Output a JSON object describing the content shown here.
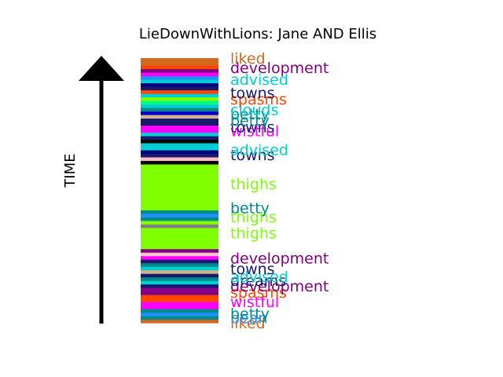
{
  "chart_data": {
    "type": "bar",
    "title": "LieDownWithLions: Jane AND Ellis",
    "ylabel": "TIME",
    "orientation": "vertical-stack",
    "time_axis_direction": "up",
    "stripes_bottom_to_top": [
      "#d2691e",
      "#008b8b",
      "#1e90ff",
      "#008b8b",
      "#ff00ff",
      "#ff00ff",
      "#ff4500",
      "#ff4500",
      "#800080",
      "#8b008b",
      "#191970",
      "#00ced1",
      "#008b8b",
      "#191970",
      "#d2b48c",
      "#00ced1",
      "#008b8b",
      "#191970",
      "#ff00ff",
      "#ffc0cb",
      "#800080",
      "#7fff00",
      "#7fff00",
      "#7fff00",
      "#7fff00",
      "#7fff00",
      "#7fff00",
      "#808080",
      "#7fff00",
      "#008b8b",
      "#1e90ff",
      "#008b8b",
      "#7fff00",
      "#7fff00",
      "#7fff00",
      "#7fff00",
      "#7fff00",
      "#7fff00",
      "#7fff00",
      "#7fff00",
      "#7fff00",
      "#7fff00",
      "#7fff00",
      "#7fff00",
      "#7fff00",
      "#000000",
      "#ffc0cb",
      "#191970",
      "#000080",
      "#00ced1",
      "#00ced1",
      "#000000",
      "#191970",
      "#00ced1",
      "#ff00ff",
      "#ff00ff",
      "#191970",
      "#191970",
      "#d2b48c",
      "#0000cd",
      "#008b8b",
      "#00ced1",
      "#00ff7f",
      "#7fff00",
      "#00ced1",
      "#ff4500",
      "#191970",
      "#000080",
      "#00ced1",
      "#1e90ff",
      "#ff00ff",
      "#800080",
      "#ff4500",
      "#d2691e",
      "#d2691e"
    ],
    "labels": [
      {
        "text": "liked",
        "color": "#d2691e",
        "t": 0.0
      },
      {
        "text": "bean",
        "color": "#1e90ff",
        "t": 0.02
      },
      {
        "text": "betty",
        "color": "#008b8b",
        "t": 0.035
      },
      {
        "text": "wistful",
        "color": "#ff00ff",
        "t": 0.08
      },
      {
        "text": "spasms",
        "color": "#ff4500",
        "t": 0.115
      },
      {
        "text": "development",
        "color": "#800080",
        "t": 0.14
      },
      {
        "text": "dreams",
        "color": "#191970",
        "t": 0.16
      },
      {
        "text": "advised",
        "color": "#00ced1",
        "t": 0.175
      },
      {
        "text": "towns",
        "color": "#191970",
        "t": 0.205
      },
      {
        "text": "development",
        "color": "#800080",
        "t": 0.245
      },
      {
        "text": "thighs",
        "color": "#7fff00",
        "t": 0.34
      },
      {
        "text": "thighs",
        "color": "#7fff00",
        "t": 0.4
      },
      {
        "text": "betty",
        "color": "#008b8b",
        "t": 0.435
      },
      {
        "text": "thighs",
        "color": "#7fff00",
        "t": 0.525
      },
      {
        "text": "towns",
        "color": "#191970",
        "t": 0.635
      },
      {
        "text": "advised",
        "color": "#00ced1",
        "t": 0.655
      },
      {
        "text": "wistful",
        "color": "#ff00ff",
        "t": 0.725
      },
      {
        "text": "towns",
        "color": "#191970",
        "t": 0.74
      },
      {
        "text": "betty",
        "color": "#008b8b",
        "t": 0.765
      },
      {
        "text": "betty",
        "color": "#008b8b",
        "t": 0.79
      },
      {
        "text": "clouds",
        "color": "#00ced1",
        "t": 0.805
      },
      {
        "text": "spasms",
        "color": "#ff4500",
        "t": 0.845
      },
      {
        "text": "towns",
        "color": "#191970",
        "t": 0.87
      },
      {
        "text": "advised",
        "color": "#00ced1",
        "t": 0.92
      },
      {
        "text": "development",
        "color": "#800080",
        "t": 0.965
      },
      {
        "text": "liked",
        "color": "#d2691e",
        "t": 1.0
      }
    ]
  }
}
